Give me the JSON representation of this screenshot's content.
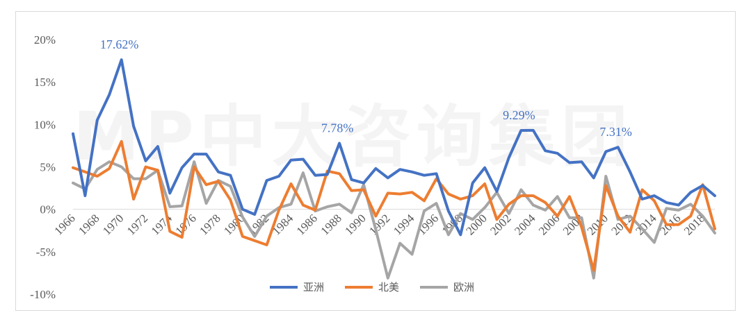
{
  "watermark": "MP中大咨询集团",
  "chart_data": {
    "type": "line",
    "title": "",
    "xlabel": "",
    "ylabel": "",
    "ylim": [
      -10,
      20
    ],
    "y_ticks": [
      "20%",
      "15%",
      "10%",
      "5%",
      "0%",
      "-5%",
      "-10%"
    ],
    "y_tick_values": [
      20,
      15,
      10,
      5,
      0,
      -5,
      -10
    ],
    "x": [
      1966,
      1967,
      1968,
      1969,
      1970,
      1971,
      1972,
      1973,
      1974,
      1975,
      1976,
      1977,
      1978,
      1979,
      1980,
      1981,
      1982,
      1983,
      1984,
      1985,
      1986,
      1987,
      1988,
      1989,
      1990,
      1991,
      1992,
      1993,
      1994,
      1995,
      1996,
      1997,
      1998,
      1999,
      2000,
      2001,
      2002,
      2003,
      2004,
      2005,
      2006,
      2007,
      2008,
      2009,
      2010,
      2011,
      2012,
      2013,
      2014,
      2015,
      2016,
      2017,
      2018,
      2019
    ],
    "x_tick_labels": [
      "1966",
      "1968",
      "1970",
      "1972",
      "1974",
      "1976",
      "1978",
      "1980",
      "1982",
      "1984",
      "1986",
      "1988",
      "1990",
      "1992",
      "1994",
      "1996",
      "1998",
      "2000",
      "2002",
      "2004",
      "2006",
      "2008",
      "2010",
      "2012",
      "2014",
      "2016",
      "2018"
    ],
    "series": [
      {
        "name": "亚洲",
        "color": "#4472c4",
        "values": [
          8.9,
          1.6,
          10.5,
          13.5,
          17.62,
          9.8,
          5.7,
          7.4,
          1.9,
          4.9,
          6.5,
          6.5,
          4.4,
          4.0,
          0.0,
          -0.6,
          3.4,
          3.9,
          5.8,
          5.9,
          4.0,
          4.1,
          7.78,
          3.5,
          3.1,
          4.8,
          3.7,
          4.7,
          4.4,
          4.0,
          4.2,
          -0.2,
          -3.0,
          3.1,
          4.9,
          2.1,
          6.1,
          9.29,
          9.3,
          6.9,
          6.6,
          5.5,
          5.6,
          3.7,
          6.8,
          7.31,
          4.4,
          1.2,
          1.6,
          0.8,
          0.5,
          2.0,
          2.8,
          1.6
        ]
      },
      {
        "name": "北美",
        "color": "#ed7d31",
        "values": [
          4.9,
          4.4,
          3.9,
          4.8,
          8.0,
          1.2,
          5.0,
          4.6,
          -2.6,
          -3.3,
          5.0,
          2.9,
          3.3,
          1.1,
          -3.2,
          -3.7,
          -4.2,
          -0.1,
          3.0,
          0.5,
          -0.1,
          4.5,
          4.2,
          2.2,
          2.3,
          -0.8,
          1.9,
          1.8,
          2.0,
          1.0,
          3.6,
          1.8,
          1.2,
          1.6,
          3.0,
          -1.2,
          0.6,
          1.6,
          1.6,
          0.8,
          -0.8,
          1.5,
          -2.1,
          -7.2,
          2.8,
          -0.8,
          -2.7,
          2.3,
          1.0,
          -1.8,
          -1.8,
          -0.8,
          2.9,
          -2.3
        ]
      },
      {
        "name": "欧洲",
        "color": "#a5a5a5",
        "values": [
          3.1,
          2.4,
          4.7,
          5.6,
          5.0,
          3.6,
          3.6,
          4.6,
          0.3,
          0.4,
          5.6,
          0.7,
          3.4,
          2.7,
          -0.9,
          -3.2,
          -0.8,
          0.2,
          0.6,
          4.3,
          -0.2,
          0.3,
          0.6,
          -0.4,
          2.9,
          -2.4,
          -8.1,
          -4.0,
          -5.3,
          -0.2,
          0.7,
          -3.0,
          -0.5,
          -1.2,
          0.2,
          2.0,
          -0.5,
          2.3,
          0.5,
          -0.1,
          1.5,
          -1.0,
          -1.0,
          -8.1,
          3.9,
          -1.2,
          -0.8,
          -2.3,
          -3.9,
          0.1,
          -0.1,
          0.6,
          -0.8,
          -2.8
        ]
      }
    ],
    "annotations": [
      {
        "label": "17.62%",
        "series": "亚洲",
        "x": 1970
      },
      {
        "label": "7.78%",
        "series": "亚洲",
        "x": 1988
      },
      {
        "label": "9.29%",
        "series": "亚洲",
        "x": 2003
      },
      {
        "label": "7.31%",
        "series": "亚洲",
        "x": 2011
      }
    ],
    "legend_position": "bottom",
    "grid": false
  }
}
